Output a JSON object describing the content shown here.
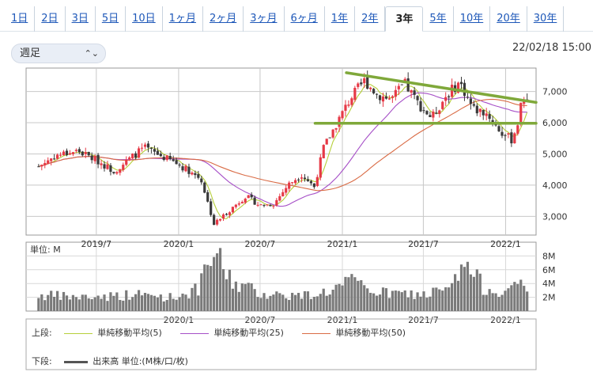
{
  "tabs": [
    {
      "label": "1日",
      "active": false
    },
    {
      "label": "2日",
      "active": false
    },
    {
      "label": "3日",
      "active": false
    },
    {
      "label": "5日",
      "active": false
    },
    {
      "label": "10日",
      "active": false
    },
    {
      "label": "1ヶ月",
      "active": false
    },
    {
      "label": "2ヶ月",
      "active": false
    },
    {
      "label": "3ヶ月",
      "active": false
    },
    {
      "label": "6ヶ月",
      "active": false
    },
    {
      "label": "1年",
      "active": false
    },
    {
      "label": "2年",
      "active": false
    },
    {
      "label": "3年",
      "active": true
    },
    {
      "label": "5年",
      "active": false
    },
    {
      "label": "10年",
      "active": false
    },
    {
      "label": "20年",
      "active": false
    },
    {
      "label": "30年",
      "active": false
    }
  ],
  "period_select": {
    "value": "週足",
    "icon": "chevron-updown-icon"
  },
  "timestamp": "22/02/18 15:00",
  "legend": {
    "upper_label": "上段:",
    "lower_label": "下段:",
    "ma5": "単純移動平均(5)",
    "ma25": "単純移動平均(25)",
    "ma50": "単純移動平均(50)",
    "volume": "出来高 単位:(M株/口/枚)"
  },
  "colors": {
    "up": "#e63946",
    "down": "#3a3a3a",
    "ma5": "#b6cf3a",
    "ma25": "#a64fc7",
    "ma50": "#d96b45",
    "volume": "#7a7a7a",
    "trendline": "#7fa83a"
  },
  "chart_data": {
    "type": "candlestick",
    "price_axis": {
      "ticks": [
        3000,
        4000,
        5000,
        6000,
        7000
      ],
      "tick_labels": [
        "3,000",
        "4,000",
        "5,000",
        "6,000",
        "7,000"
      ],
      "ylim": [
        2400,
        7750
      ]
    },
    "volume_axis": {
      "unit_label": "単位: M",
      "ticks": [
        2,
        4,
        6,
        8
      ],
      "tick_labels": [
        "2M",
        "4M",
        "6M",
        "8M"
      ],
      "ylim": [
        0,
        10
      ]
    },
    "x_axis": {
      "xlim": [
        "2019-01-25",
        "2022-03-10"
      ],
      "ticks": [
        "2019-07-01",
        "2020-01-01",
        "2020-07-01",
        "2021-01-01",
        "2021-07-01",
        "2022-01-01"
      ],
      "price_tick_labels": [
        "2019/7",
        "2020/1",
        "2020/7",
        "2021/1",
        "2021/7",
        "2022/1"
      ],
      "volume_tick_labels": [
        "2020/1",
        "2020/7",
        "2021/1",
        "2021/7",
        "2022/1"
      ]
    },
    "grid": true,
    "price_keypoints": [
      [
        "2019-02-22",
        4600
      ],
      [
        "2019-04-01",
        4950
      ],
      [
        "2019-05-20",
        5100
      ],
      [
        "2019-07-01",
        4800
      ],
      [
        "2019-08-10",
        4450
      ],
      [
        "2019-10-15",
        5200
      ],
      [
        "2019-11-20",
        4950
      ],
      [
        "2019-12-20",
        4750
      ],
      [
        "2020-01-20",
        4500
      ],
      [
        "2020-02-20",
        4200
      ],
      [
        "2020-03-20",
        2750
      ],
      [
        "2020-04-20",
        3150
      ],
      [
        "2020-05-30",
        3650
      ],
      [
        "2020-06-30",
        3350
      ],
      [
        "2020-08-01",
        3400
      ],
      [
        "2020-09-01",
        4000
      ],
      [
        "2020-10-01",
        4350
      ],
      [
        "2020-10-30",
        3950
      ],
      [
        "2020-11-20",
        5200
      ],
      [
        "2020-12-20",
        6000
      ],
      [
        "2021-01-20",
        6800
      ],
      [
        "2021-02-20",
        7350
      ],
      [
        "2021-03-20",
        6900
      ],
      [
        "2021-04-20",
        6750
      ],
      [
        "2021-05-20",
        7250
      ],
      [
        "2021-06-20",
        6600
      ],
      [
        "2021-07-20",
        6150
      ],
      [
        "2021-08-20",
        6850
      ],
      [
        "2021-09-20",
        7300
      ],
      [
        "2021-10-20",
        6450
      ],
      [
        "2021-11-20",
        6300
      ],
      [
        "2021-12-20",
        5700
      ],
      [
        "2022-01-15",
        5450
      ],
      [
        "2022-01-28",
        6000
      ],
      [
        "2022-02-08",
        6800
      ],
      [
        "2022-02-18",
        6850
      ]
    ],
    "volume_keypoints": [
      [
        "2019-02-22",
        2.3
      ],
      [
        "2019-06-01",
        2.0
      ],
      [
        "2019-10-01",
        2.4
      ],
      [
        "2019-12-20",
        2.0
      ],
      [
        "2020-02-15",
        3.2
      ],
      [
        "2020-03-20",
        8.5
      ],
      [
        "2020-04-30",
        4.3
      ],
      [
        "2020-07-01",
        2.6
      ],
      [
        "2020-10-01",
        2.2
      ],
      [
        "2020-12-01",
        2.9
      ],
      [
        "2021-01-20",
        4.2
      ],
      [
        "2021-04-01",
        2.6
      ],
      [
        "2021-07-01",
        2.4
      ],
      [
        "2021-09-01",
        3.2
      ],
      [
        "2021-10-01",
        6.8
      ],
      [
        "2021-11-15",
        3.3
      ],
      [
        "2022-01-15",
        2.9
      ],
      [
        "2022-02-05",
        4.5
      ],
      [
        "2022-02-18",
        2.6
      ]
    ],
    "trendlines": [
      {
        "name": "resistance",
        "from": [
          "2021-01-10",
          7600
        ],
        "to": [
          "2022-03-10",
          6650
        ]
      },
      {
        "name": "support",
        "from": [
          "2020-11-01",
          5980
        ],
        "to": [
          "2022-03-10",
          5980
        ]
      }
    ],
    "series": [
      {
        "name": "単純移動平均(5)",
        "window": 5
      },
      {
        "name": "単純移動平均(25)",
        "window": 25
      },
      {
        "name": "単純移動平均(50)",
        "window": 50
      }
    ]
  }
}
